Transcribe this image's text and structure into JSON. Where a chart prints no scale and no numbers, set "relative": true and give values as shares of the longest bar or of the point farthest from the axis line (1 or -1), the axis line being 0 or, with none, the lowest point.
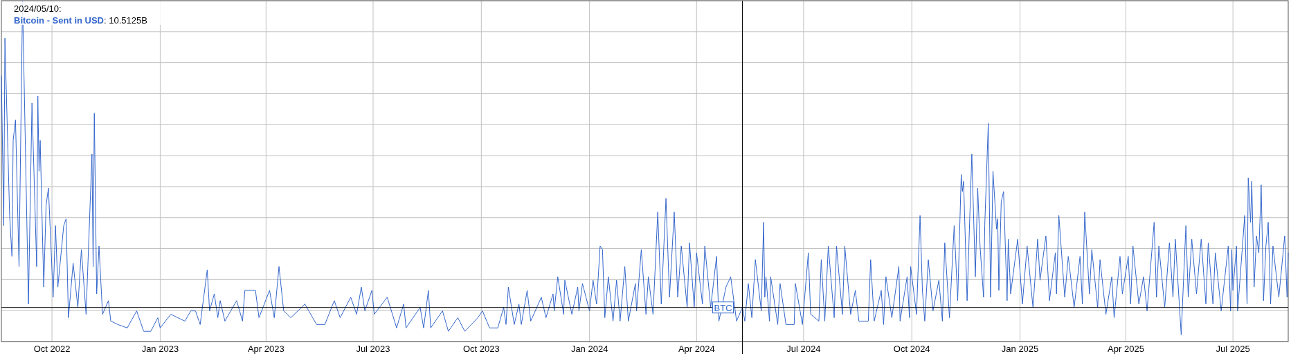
{
  "chart_data": {
    "type": "line",
    "relative": true,
    "grid": true,
    "marker": "none",
    "line_style": "solid",
    "xlim": [
      "2022-08-19",
      "2025-08-17"
    ],
    "xticks": [
      {
        "value": "2022-10-01",
        "label": "Oct 2022"
      },
      {
        "value": "2023-01-01",
        "label": "Jan 2023"
      },
      {
        "value": "2023-04-01",
        "label": "Apr 2023"
      },
      {
        "value": "2023-07-01",
        "label": "Jul 2023"
      },
      {
        "value": "2023-10-01",
        "label": "Oct 2023"
      },
      {
        "value": "2024-01-01",
        "label": "Jan 2024"
      },
      {
        "value": "2024-04-01",
        "label": "Apr 2024"
      },
      {
        "value": "2024-07-01",
        "label": "Jul 2024"
      },
      {
        "value": "2024-10-01",
        "label": "Oct 2024"
      },
      {
        "value": "2025-01-01",
        "label": "Jan 2025"
      },
      {
        "value": "2025-04-01",
        "label": "Apr 2025"
      },
      {
        "value": "2025-07-01",
        "label": "Jul 2025"
      }
    ],
    "annotations": [
      "2024/05/10:",
      ": 10.5125B"
    ],
    "ref_lines": [
      {
        "axis": "x",
        "value": "2024-05-10",
        "label": "BTC",
        "color": "#000000"
      },
      {
        "axis": "y",
        "value": 0.1,
        "color": "#000000"
      }
    ],
    "series": [
      {
        "name": "Bitcoin - Sent in USD",
        "color": "#3366cc",
        "x": [
          "2022-08-19",
          "2022-08-21",
          "2022-08-22",
          "2022-08-26",
          "2022-08-28",
          "2022-08-29",
          "2022-08-31",
          "2022-09-03",
          "2022-09-06",
          "2022-09-11",
          "2022-09-14",
          "2022-09-18",
          "2022-09-19",
          "2022-09-20",
          "2022-09-21",
          "2022-09-24",
          "2022-09-26",
          "2022-09-28",
          "2022-10-02",
          "2022-10-04",
          "2022-10-06",
          "2022-10-11",
          "2022-10-13",
          "2022-10-15",
          "2022-10-19",
          "2022-10-23",
          "2022-10-26",
          "2022-10-30",
          "2022-11-04",
          "2022-11-05",
          "2022-11-06",
          "2022-11-08",
          "2022-11-10",
          "2022-11-13",
          "2022-11-18",
          "2022-11-20",
          "2022-11-26",
          "2022-12-04",
          "2022-12-12",
          "2022-12-18",
          "2022-12-24",
          "2022-12-30",
          "2023-01-01",
          "2023-01-10",
          "2023-01-22",
          "2023-01-27",
          "2023-01-31",
          "2023-02-04",
          "2023-02-10",
          "2023-02-12",
          "2023-02-16",
          "2023-02-19",
          "2023-02-21",
          "2023-02-25",
          "2023-03-07",
          "2023-03-12",
          "2023-03-14",
          "2023-03-23",
          "2023-03-26",
          "2023-04-04",
          "2023-04-08",
          "2023-04-12",
          "2023-04-16",
          "2023-04-22",
          "2023-05-04",
          "2023-05-14",
          "2023-05-21",
          "2023-05-29",
          "2023-06-03",
          "2023-06-12",
          "2023-06-17",
          "2023-06-21",
          "2023-06-24",
          "2023-06-30",
          "2023-07-02",
          "2023-07-13",
          "2023-07-21",
          "2023-07-27",
          "2023-07-29",
          "2023-08-10",
          "2023-08-13",
          "2023-08-17",
          "2023-08-19",
          "2023-08-29",
          "2023-09-03",
          "2023-09-11",
          "2023-09-17",
          "2023-09-28",
          "2023-10-02",
          "2023-10-08",
          "2023-10-15",
          "2023-10-20",
          "2023-10-22",
          "2023-10-24",
          "2023-10-29",
          "2023-11-02",
          "2023-11-04",
          "2023-11-09",
          "2023-11-12",
          "2023-11-21",
          "2023-11-25",
          "2023-12-01",
          "2023-12-02",
          "2023-12-05",
          "2023-12-10",
          "2023-12-11",
          "2023-12-17",
          "2023-12-22",
          "2023-12-23",
          "2023-12-26",
          "2024-01-01",
          "2024-01-04",
          "2024-01-07",
          "2024-01-10",
          "2024-01-12",
          "2024-01-14",
          "2024-01-17",
          "2024-01-21",
          "2024-01-24",
          "2024-01-27",
          "2024-01-31",
          "2024-02-03",
          "2024-02-09",
          "2024-02-10",
          "2024-02-14",
          "2024-02-18",
          "2024-02-20",
          "2024-02-24",
          "2024-02-28",
          "2024-03-02",
          "2024-03-06",
          "2024-03-09",
          "2024-03-13",
          "2024-03-16",
          "2024-03-19",
          "2024-03-24",
          "2024-03-26",
          "2024-03-30",
          "2024-04-01",
          "2024-04-06",
          "2024-04-08",
          "2024-04-13",
          "2024-04-18",
          "2024-04-20",
          "2024-04-26",
          "2024-04-30",
          "2024-05-05",
          "2024-05-10",
          "2024-05-12",
          "2024-05-15",
          "2024-05-18",
          "2024-05-21",
          "2024-05-26",
          "2024-05-28",
          "2024-05-29",
          "2024-05-30",
          "2024-06-02",
          "2024-06-03",
          "2024-06-09",
          "2024-06-11",
          "2024-06-16",
          "2024-06-23",
          "2024-06-24",
          "2024-06-30",
          "2024-07-05",
          "2024-07-07",
          "2024-07-14",
          "2024-07-16",
          "2024-07-19",
          "2024-07-22",
          "2024-07-27",
          "2024-07-29",
          "2024-08-03",
          "2024-08-05",
          "2024-08-10",
          "2024-08-14",
          "2024-08-17",
          "2024-08-25",
          "2024-08-27",
          "2024-08-30",
          "2024-09-05",
          "2024-09-07",
          "2024-09-09",
          "2024-09-14",
          "2024-09-20",
          "2024-09-21",
          "2024-09-27",
          "2024-09-29",
          "2024-09-30",
          "2024-10-05",
          "2024-10-08",
          "2024-10-10",
          "2024-10-12",
          "2024-10-15",
          "2024-10-19",
          "2024-10-24",
          "2024-10-27",
          "2024-10-29",
          "2024-11-02",
          "2024-11-06",
          "2024-11-09",
          "2024-11-12",
          "2024-11-13",
          "2024-11-14",
          "2024-11-17",
          "2024-11-21",
          "2024-11-24",
          "2024-11-26",
          "2024-11-28",
          "2024-12-01",
          "2024-12-02",
          "2024-12-05",
          "2024-12-07",
          "2024-12-09",
          "2024-12-12",
          "2024-12-13",
          "2024-12-14",
          "2024-12-16",
          "2024-12-18",
          "2024-12-21",
          "2024-12-22",
          "2024-12-24",
          "2024-12-30",
          "2025-01-03",
          "2025-01-07",
          "2025-01-12",
          "2025-01-16",
          "2025-01-18",
          "2025-01-23",
          "2025-01-26",
          "2025-01-31",
          "2025-02-01",
          "2025-02-03",
          "2025-02-08",
          "2025-02-11",
          "2025-02-16",
          "2025-02-21",
          "2025-02-23",
          "2025-02-25",
          "2025-03-01",
          "2025-03-03",
          "2025-03-08",
          "2025-03-10",
          "2025-03-15",
          "2025-03-20",
          "2025-03-22",
          "2025-03-27",
          "2025-03-29",
          "2025-04-03",
          "2025-04-05",
          "2025-04-07",
          "2025-04-12",
          "2025-04-16",
          "2025-04-19",
          "2025-04-25",
          "2025-04-27",
          "2025-04-29",
          "2025-05-04",
          "2025-05-08",
          "2025-05-11",
          "2025-05-13",
          "2025-05-18",
          "2025-05-22",
          "2025-05-24",
          "2025-05-27",
          "2025-05-31",
          "2025-06-04",
          "2025-06-08",
          "2025-06-10",
          "2025-06-14",
          "2025-06-16",
          "2025-06-21",
          "2025-06-27",
          "2025-06-29",
          "2025-06-30",
          "2025-07-01",
          "2025-07-04",
          "2025-07-05",
          "2025-07-11",
          "2025-07-13",
          "2025-07-14",
          "2025-07-16",
          "2025-07-17",
          "2025-07-19",
          "2025-07-21",
          "2025-07-23",
          "2025-07-25",
          "2025-07-27",
          "2025-07-29",
          "2025-07-31",
          "2025-08-02",
          "2025-08-04",
          "2025-08-09",
          "2025-08-14",
          "2025-08-16",
          "2025-08-17"
        ],
        "values": [
          0.78,
          0.34,
          0.89,
          0.37,
          0.25,
          0.59,
          0.65,
          0.22,
          1.0,
          0.11,
          0.7,
          0.22,
          0.72,
          0.5,
          0.59,
          0.16,
          0.4,
          0.45,
          0.13,
          0.34,
          0.16,
          0.34,
          0.36,
          0.07,
          0.23,
          0.1,
          0.27,
          0.08,
          0.55,
          0.22,
          0.67,
          0.14,
          0.28,
          0.08,
          0.12,
          0.06,
          0.05,
          0.04,
          0.09,
          0.03,
          0.03,
          0.07,
          0.04,
          0.08,
          0.06,
          0.09,
          0.09,
          0.05,
          0.21,
          0.09,
          0.14,
          0.07,
          0.12,
          0.06,
          0.12,
          0.06,
          0.15,
          0.15,
          0.07,
          0.15,
          0.07,
          0.22,
          0.09,
          0.07,
          0.11,
          0.05,
          0.05,
          0.12,
          0.07,
          0.13,
          0.08,
          0.16,
          0.09,
          0.15,
          0.08,
          0.13,
          0.04,
          0.11,
          0.04,
          0.1,
          0.04,
          0.15,
          0.04,
          0.09,
          0.03,
          0.07,
          0.03,
          0.07,
          0.09,
          0.04,
          0.04,
          0.1,
          0.05,
          0.16,
          0.05,
          0.11,
          0.05,
          0.15,
          0.06,
          0.13,
          0.07,
          0.14,
          0.09,
          0.19,
          0.08,
          0.18,
          0.08,
          0.16,
          0.09,
          0.17,
          0.09,
          0.18,
          0.11,
          0.28,
          0.27,
          0.07,
          0.19,
          0.06,
          0.18,
          0.06,
          0.22,
          0.06,
          0.17,
          0.09,
          0.27,
          0.08,
          0.19,
          0.08,
          0.38,
          0.11,
          0.42,
          0.13,
          0.38,
          0.13,
          0.28,
          0.1,
          0.29,
          0.1,
          0.26,
          0.11,
          0.28,
          0.1,
          0.25,
          0.06,
          0.16,
          0.19,
          0.06,
          0.1,
          0.06,
          0.17,
          0.07,
          0.24,
          0.09,
          0.35,
          0.13,
          0.19,
          0.06,
          0.19,
          0.05,
          0.17,
          0.05,
          0.05,
          0.17,
          0.05,
          0.26,
          0.08,
          0.06,
          0.24,
          0.06,
          0.28,
          0.07,
          0.28,
          0.08,
          0.28,
          0.08,
          0.15,
          0.06,
          0.06,
          0.24,
          0.06,
          0.15,
          0.05,
          0.19,
          0.07,
          0.22,
          0.06,
          0.19,
          0.07,
          0.22,
          0.08,
          0.37,
          0.15,
          0.06,
          0.24,
          0.09,
          0.18,
          0.06,
          0.29,
          0.07,
          0.34,
          0.12,
          0.49,
          0.44,
          0.47,
          0.12,
          0.55,
          0.19,
          0.45,
          0.28,
          0.13,
          0.34,
          0.64,
          0.13,
          0.5,
          0.33,
          0.36,
          0.15,
          0.41,
          0.44,
          0.12,
          0.3,
          0.14,
          0.3,
          0.11,
          0.28,
          0.1,
          0.3,
          0.18,
          0.31,
          0.12,
          0.26,
          0.14,
          0.37,
          0.13,
          0.25,
          0.1,
          0.25,
          0.11,
          0.38,
          0.14,
          0.27,
          0.1,
          0.24,
          0.08,
          0.19,
          0.07,
          0.25,
          0.14,
          0.25,
          0.11,
          0.28,
          0.11,
          0.19,
          0.09,
          0.35,
          0.13,
          0.28,
          0.1,
          0.29,
          0.13,
          0.3,
          0.02,
          0.34,
          0.13,
          0.3,
          0.14,
          0.3,
          0.11,
          0.29,
          0.11,
          0.26,
          0.09,
          0.28,
          0.09,
          0.27,
          0.15,
          0.28,
          0.09,
          0.37,
          0.11,
          0.48,
          0.35,
          0.47,
          0.16,
          0.31,
          0.26,
          0.46,
          0.12,
          0.28,
          0.35,
          0.11,
          0.28,
          0.13,
          0.31,
          0.13,
          0.26
        ]
      }
    ]
  }
}
